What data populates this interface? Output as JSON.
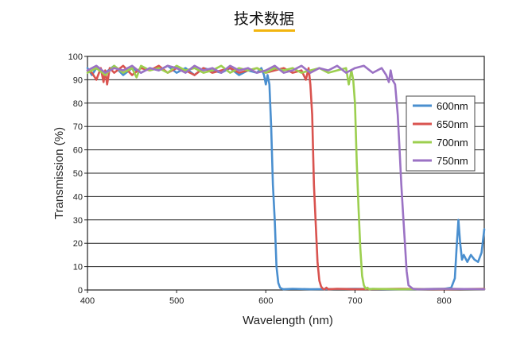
{
  "header": {
    "title": "技术数据",
    "underline_color": "#f2b50f"
  },
  "chart_data": {
    "type": "line",
    "title": "技术数据",
    "xlabel": "Wavelength (nm)",
    "ylabel": "Transmission (%)",
    "xlim": [
      400,
      845
    ],
    "ylim": [
      0,
      100
    ],
    "x_ticks": [
      400,
      500,
      600,
      700,
      800
    ],
    "y_ticks": [
      0,
      10,
      20,
      30,
      40,
      50,
      60,
      70,
      80,
      90,
      100
    ],
    "grid": "horizontal",
    "legend_position": "right",
    "series": [
      {
        "name": "600nm",
        "color": "#4a8fcf",
        "x": [
          400,
          405,
          410,
          420,
          430,
          440,
          450,
          460,
          470,
          480,
          490,
          500,
          510,
          520,
          530,
          540,
          550,
          560,
          570,
          580,
          590,
          595,
          598,
          600,
          602,
          604,
          606,
          608,
          610,
          612,
          614,
          616,
          618,
          620,
          630,
          650,
          700,
          750,
          800,
          808,
          812,
          814,
          816,
          818,
          820,
          822,
          826,
          830,
          834,
          838,
          842,
          845
        ],
        "y": [
          95,
          92,
          95,
          93,
          96,
          92,
          95,
          93,
          95,
          94,
          96,
          93,
          95,
          92,
          95,
          94,
          93,
          95,
          92,
          94,
          93,
          95,
          92,
          88,
          92,
          88,
          70,
          45,
          30,
          10,
          3,
          1,
          0.5,
          0.3,
          0.5,
          0.3,
          0.5,
          0.3,
          0.5,
          1,
          5,
          18,
          30,
          20,
          13,
          15,
          12,
          15,
          13,
          12,
          16,
          26
        ]
      },
      {
        "name": "650nm",
        "color": "#d9534f",
        "x": [
          400,
          405,
          410,
          415,
          418,
          420,
          422,
          425,
          430,
          440,
          450,
          460,
          470,
          480,
          490,
          500,
          510,
          520,
          530,
          540,
          550,
          560,
          570,
          580,
          590,
          600,
          610,
          620,
          630,
          640,
          645,
          648,
          650,
          652,
          654,
          656,
          658,
          660,
          662,
          664,
          666,
          668,
          670,
          680,
          700,
          750,
          800,
          845
        ],
        "y": [
          94,
          93,
          90,
          95,
          89,
          94,
          88,
          95,
          93,
          96,
          92,
          95,
          94,
          96,
          93,
          95,
          94,
          92,
          95,
          93,
          94,
          95,
          93,
          94,
          95,
          93,
          94,
          95,
          93,
          94,
          90,
          95,
          88,
          75,
          45,
          28,
          12,
          4,
          1.5,
          0.5,
          0.3,
          1,
          0.3,
          0.5,
          0.3,
          0.5,
          0.3,
          0.5
        ]
      },
      {
        "name": "700nm",
        "color": "#9ccf4f",
        "x": [
          400,
          410,
          420,
          430,
          440,
          450,
          455,
          460,
          470,
          480,
          490,
          500,
          510,
          520,
          530,
          540,
          550,
          560,
          570,
          580,
          590,
          600,
          610,
          620,
          630,
          640,
          650,
          660,
          670,
          680,
          690,
          693,
          696,
          698,
          700,
          702,
          704,
          706,
          708,
          710,
          712,
          714,
          716,
          720,
          750,
          800,
          845
        ],
        "y": [
          93,
          95,
          92,
          96,
          93,
          95,
          91,
          96,
          94,
          95,
          93,
          96,
          94,
          95,
          93,
          94,
          96,
          93,
          95,
          94,
          95,
          93,
          95,
          94,
          95,
          93,
          94,
          95,
          93,
          94,
          95,
          88,
          94,
          90,
          80,
          55,
          35,
          18,
          6,
          2,
          0.5,
          1,
          0.3,
          0.5,
          0.3,
          0.5,
          0.3
        ]
      },
      {
        "name": "750nm",
        "color": "#9b72c4",
        "x": [
          400,
          410,
          420,
          430,
          440,
          450,
          460,
          470,
          480,
          490,
          500,
          510,
          520,
          530,
          540,
          550,
          560,
          570,
          580,
          590,
          600,
          610,
          620,
          630,
          640,
          650,
          660,
          670,
          680,
          690,
          700,
          710,
          720,
          730,
          735,
          738,
          740,
          742,
          745,
          748,
          750,
          752,
          754,
          756,
          758,
          760,
          765,
          770,
          800,
          845
        ],
        "y": [
          94,
          96,
          93,
          95,
          94,
          96,
          93,
          95,
          94,
          96,
          95,
          93,
          96,
          94,
          95,
          93,
          96,
          94,
          95,
          93,
          94,
          96,
          93,
          94,
          96,
          93,
          95,
          94,
          96,
          93,
          95,
          96,
          93,
          95,
          92,
          89,
          94,
          90,
          88,
          75,
          60,
          45,
          32,
          20,
          8,
          2,
          0.5,
          0.3,
          0.5,
          0.3
        ]
      }
    ]
  }
}
